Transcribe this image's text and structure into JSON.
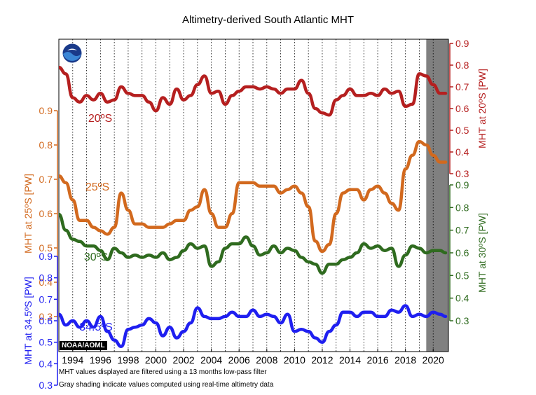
{
  "title": "Altimetry-derived South Atlantic MHT",
  "footnotes": [
    "MHT values displayed are filtered using a 13 months low-pass filter",
    "Gray shading indicate values computed using real-time altimetry data"
  ],
  "badge": "NOAA/AOML",
  "logo_text": "noaa",
  "colors": {
    "s20": "#b51f1f",
    "s25": "#d2691e",
    "s30": "#2f6b1f",
    "s345": "#1f1ff0",
    "realtime_shade": "#808080",
    "grid": "#000000"
  },
  "chart_data": {
    "type": "line",
    "title": "Altimetry-derived South Atlantic MHT",
    "x_tick_labels": [
      "1994",
      "1996",
      "1998",
      "2000",
      "2002",
      "2004",
      "2006",
      "2008",
      "2010",
      "2012",
      "2014",
      "2016",
      "2018",
      "2020"
    ],
    "xlim": [
      1993.0,
      2021.1
    ],
    "grid": "vertical dotted lines each year",
    "realtime_shading": [
      2019.5,
      2021.1
    ],
    "axes": [
      {
        "id": "s20",
        "label": "MHT at 20ºS [PW]",
        "side": "right",
        "ticks": [
          "0.9",
          "0.8",
          "0.7",
          "0.6",
          "0.5",
          "0.4",
          "0.3"
        ],
        "range": [
          0.3,
          0.9
        ]
      },
      {
        "id": "s25",
        "label": "MHT at 25ºS [PW]",
        "side": "left",
        "ticks": [
          "0.9",
          "0.8",
          "0.7",
          "0.6",
          "0.5",
          "0.4",
          "0.3"
        ],
        "range": [
          0.3,
          0.9
        ]
      },
      {
        "id": "s30",
        "label": "MHT at 30ºS [PW]",
        "side": "right",
        "ticks": [
          "0.9",
          "0.8",
          "0.7",
          "0.6",
          "0.5",
          "0.4",
          "0.3"
        ],
        "range": [
          0.3,
          0.9
        ]
      },
      {
        "id": "s345",
        "label": "MHT at 34.5ºS [PW]",
        "side": "left",
        "ticks": [
          "0.9",
          "0.8",
          "0.7",
          "0.6",
          "0.5",
          "0.4",
          "0.3"
        ],
        "range": [
          0.3,
          0.9
        ]
      }
    ],
    "series": [
      {
        "name": "20ºS",
        "axis": "s20",
        "x": [
          1993.0,
          1993.5,
          1994.0,
          1994.5,
          1995.0,
          1995.5,
          1996.0,
          1996.5,
          1997.0,
          1997.5,
          1998.0,
          1998.5,
          1999.0,
          1999.5,
          2000.0,
          2000.5,
          2001.0,
          2001.5,
          2002.0,
          2002.5,
          2003.0,
          2003.5,
          2004.0,
          2004.5,
          2005.0,
          2005.5,
          2006.0,
          2006.5,
          2007.0,
          2007.5,
          2008.0,
          2008.5,
          2009.0,
          2009.5,
          2010.0,
          2010.5,
          2011.0,
          2011.5,
          2012.0,
          2012.5,
          2013.0,
          2013.5,
          2014.0,
          2014.5,
          2015.0,
          2015.5,
          2016.0,
          2016.5,
          2017.0,
          2017.5,
          2018.0,
          2018.5,
          2019.0,
          2019.5,
          2020.0,
          2020.5,
          2020.9
        ],
        "y": [
          0.79,
          0.76,
          0.65,
          0.63,
          0.66,
          0.64,
          0.67,
          0.63,
          0.64,
          0.7,
          0.67,
          0.66,
          0.66,
          0.63,
          0.59,
          0.65,
          0.62,
          0.69,
          0.64,
          0.66,
          0.71,
          0.75,
          0.67,
          0.68,
          0.62,
          0.66,
          0.68,
          0.7,
          0.7,
          0.69,
          0.7,
          0.69,
          0.67,
          0.69,
          0.69,
          0.73,
          0.67,
          0.6,
          0.58,
          0.57,
          0.64,
          0.66,
          0.69,
          0.66,
          0.66,
          0.67,
          0.66,
          0.69,
          0.67,
          0.68,
          0.61,
          0.62,
          0.76,
          0.75,
          0.71,
          0.67,
          0.67
        ]
      },
      {
        "name": "25ºS",
        "axis": "s25",
        "x": [
          1993.0,
          1993.5,
          1994.0,
          1994.5,
          1995.0,
          1995.5,
          1996.0,
          1996.5,
          1997.0,
          1997.5,
          1998.0,
          1998.5,
          1999.0,
          1999.5,
          2000.0,
          2000.5,
          2001.0,
          2001.5,
          2002.0,
          2002.5,
          2003.0,
          2003.5,
          2004.0,
          2004.5,
          2005.0,
          2005.5,
          2006.0,
          2006.5,
          2007.0,
          2007.5,
          2008.0,
          2008.5,
          2009.0,
          2009.5,
          2010.0,
          2010.5,
          2011.0,
          2011.5,
          2012.0,
          2012.5,
          2013.0,
          2013.5,
          2014.0,
          2014.5,
          2015.0,
          2015.5,
          2016.0,
          2016.5,
          2017.0,
          2017.5,
          2018.0,
          2018.5,
          2019.0,
          2019.5,
          2020.0,
          2020.5,
          2020.9
        ],
        "y": [
          0.71,
          0.69,
          0.64,
          0.58,
          0.58,
          0.56,
          0.55,
          0.54,
          0.56,
          0.66,
          0.61,
          0.57,
          0.57,
          0.56,
          0.56,
          0.56,
          0.57,
          0.58,
          0.58,
          0.61,
          0.62,
          0.67,
          0.6,
          0.56,
          0.56,
          0.6,
          0.69,
          0.69,
          0.69,
          0.68,
          0.68,
          0.68,
          0.66,
          0.67,
          0.68,
          0.66,
          0.62,
          0.52,
          0.49,
          0.51,
          0.6,
          0.66,
          0.67,
          0.67,
          0.64,
          0.67,
          0.68,
          0.66,
          0.63,
          0.61,
          0.73,
          0.77,
          0.81,
          0.8,
          0.77,
          0.75,
          0.75
        ]
      },
      {
        "name": "30ºS",
        "axis": "s30",
        "x": [
          1993.0,
          1993.5,
          1994.0,
          1994.5,
          1995.0,
          1995.5,
          1996.0,
          1996.5,
          1997.0,
          1997.5,
          1998.0,
          1998.5,
          1999.0,
          1999.5,
          2000.0,
          2000.5,
          2001.0,
          2001.5,
          2002.0,
          2002.5,
          2003.0,
          2003.5,
          2004.0,
          2004.5,
          2005.0,
          2005.5,
          2006.0,
          2006.5,
          2007.0,
          2007.5,
          2008.0,
          2008.5,
          2009.0,
          2009.5,
          2010.0,
          2010.5,
          2011.0,
          2011.5,
          2012.0,
          2012.5,
          2013.0,
          2013.5,
          2014.0,
          2014.5,
          2015.0,
          2015.5,
          2016.0,
          2016.5,
          2017.0,
          2017.5,
          2018.0,
          2018.5,
          2019.0,
          2019.5,
          2020.0,
          2020.5,
          2020.9
        ],
        "y": [
          0.77,
          0.7,
          0.66,
          0.65,
          0.63,
          0.63,
          0.61,
          0.57,
          0.62,
          0.6,
          0.58,
          0.59,
          0.58,
          0.59,
          0.58,
          0.6,
          0.57,
          0.58,
          0.61,
          0.64,
          0.62,
          0.63,
          0.54,
          0.56,
          0.62,
          0.64,
          0.64,
          0.67,
          0.63,
          0.59,
          0.6,
          0.63,
          0.6,
          0.62,
          0.61,
          0.58,
          0.56,
          0.55,
          0.51,
          0.55,
          0.55,
          0.57,
          0.58,
          0.6,
          0.64,
          0.62,
          0.63,
          0.61,
          0.62,
          0.54,
          0.59,
          0.63,
          0.62,
          0.6,
          0.61,
          0.61,
          0.6
        ]
      },
      {
        "name": "34.5ºS",
        "axis": "s345",
        "x": [
          1993.0,
          1993.5,
          1994.0,
          1994.5,
          1995.0,
          1995.5,
          1996.0,
          1996.5,
          1997.0,
          1997.5,
          1998.0,
          1998.5,
          1999.0,
          1999.5,
          2000.0,
          2000.5,
          2001.0,
          2001.5,
          2002.0,
          2002.5,
          2003.0,
          2003.5,
          2004.0,
          2004.5,
          2005.0,
          2005.5,
          2006.0,
          2006.5,
          2007.0,
          2007.5,
          2008.0,
          2008.5,
          2009.0,
          2009.5,
          2010.0,
          2010.5,
          2011.0,
          2011.5,
          2012.0,
          2012.5,
          2013.0,
          2013.5,
          2014.0,
          2014.5,
          2015.0,
          2015.5,
          2016.0,
          2016.5,
          2017.0,
          2017.5,
          2018.0,
          2018.5,
          2019.0,
          2019.5,
          2020.0,
          2020.5,
          2020.9
        ],
        "y": [
          0.63,
          0.58,
          0.6,
          0.57,
          0.6,
          0.57,
          0.62,
          0.55,
          0.51,
          0.48,
          0.56,
          0.57,
          0.58,
          0.61,
          0.59,
          0.53,
          0.57,
          0.52,
          0.55,
          0.59,
          0.66,
          0.62,
          0.61,
          0.61,
          0.62,
          0.64,
          0.62,
          0.62,
          0.65,
          0.62,
          0.63,
          0.62,
          0.59,
          0.63,
          0.55,
          0.56,
          0.55,
          0.52,
          0.5,
          0.55,
          0.58,
          0.64,
          0.64,
          0.62,
          0.64,
          0.64,
          0.62,
          0.62,
          0.65,
          0.64,
          0.67,
          0.62,
          0.63,
          0.62,
          0.64,
          0.63,
          0.62
        ]
      }
    ],
    "series_labels": [
      "20ºS",
      "25ºS",
      "30ºS",
      "34.5ºS"
    ]
  }
}
